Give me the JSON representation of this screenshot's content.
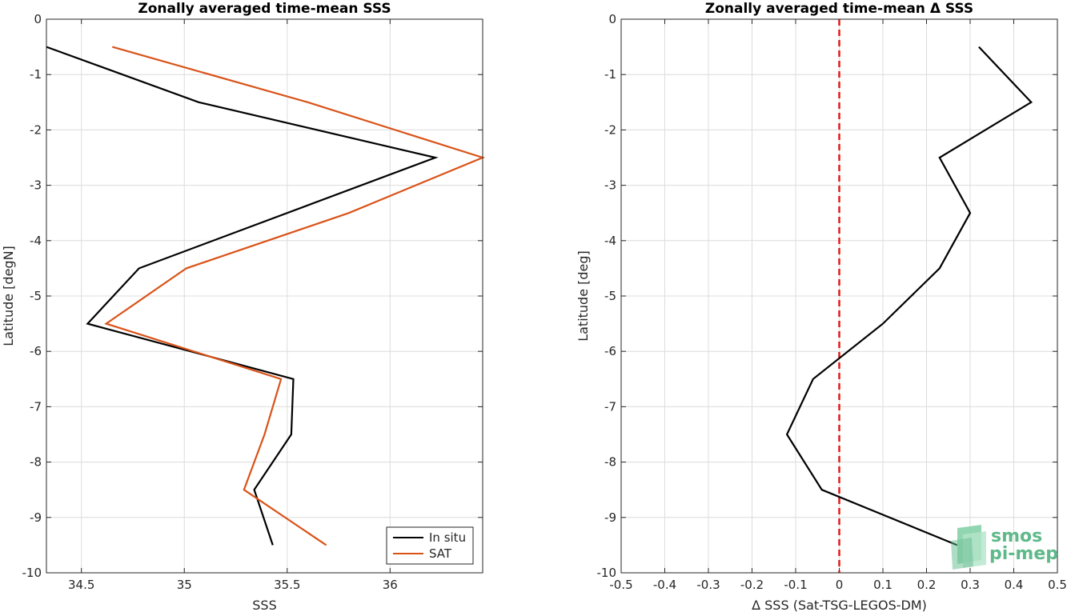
{
  "chart_data": [
    {
      "type": "line",
      "title": "Zonally averaged time-mean SSS",
      "xlabel": "SSS",
      "ylabel": "Latitude [degN]",
      "xlim": [
        34.33,
        36.45
      ],
      "ylim": [
        -10,
        0
      ],
      "xticks": [
        34.5,
        35,
        35.5,
        36
      ],
      "xtick_labels": [
        "34.5",
        "35",
        "35.5",
        "36"
      ],
      "yticks": [
        0,
        -1,
        -2,
        -3,
        -4,
        -5,
        -6,
        -7,
        -8,
        -9,
        -10
      ],
      "ytick_labels": [
        "0",
        "-1",
        "-2",
        "-3",
        "-4",
        "-5",
        "-6",
        "-7",
        "-8",
        "-9",
        "-10"
      ],
      "grid": true,
      "legend_position": "bottom-right",
      "series": [
        {
          "name": "In situ",
          "color": "#000000",
          "x": [
            34.33,
            35.07,
            36.22,
            34.78,
            34.53,
            35.53,
            35.52,
            35.34,
            35.43
          ],
          "y": [
            -0.5,
            -1.5,
            -2.5,
            -4.5,
            -5.5,
            -6.5,
            -7.5,
            -8.5,
            -9.5
          ]
        },
        {
          "name": "SAT",
          "color": "#d95319",
          "x": [
            34.65,
            35.6,
            36.45,
            35.8,
            35.01,
            34.62,
            35.47,
            35.39,
            35.29,
            35.69
          ],
          "y": [
            -0.5,
            -1.5,
            -2.5,
            -3.5,
            -4.5,
            -5.5,
            -6.5,
            -7.5,
            -8.5,
            -9.5
          ]
        }
      ]
    },
    {
      "type": "line",
      "title": "Zonally averaged time-mean Δ SSS",
      "xlabel": "Δ SSS (Sat-TSG-LEGOS-DM)",
      "ylabel": "Latitude [deg]",
      "xlim": [
        -0.5,
        0.5
      ],
      "ylim": [
        -10,
        0
      ],
      "xticks": [
        -0.5,
        -0.4,
        -0.3,
        -0.2,
        -0.1,
        0,
        0.1,
        0.2,
        0.3,
        0.4,
        0.5
      ],
      "xtick_labels": [
        "-0.5",
        "-0.4",
        "-0.3",
        "-0.2",
        "-0.1",
        "0",
        "0.1",
        "0.2",
        "0.3",
        "0.4",
        "0.5"
      ],
      "yticks": [
        0,
        -1,
        -2,
        -3,
        -4,
        -5,
        -6,
        -7,
        -8,
        -9,
        -10
      ],
      "ytick_labels": [
        "0",
        "-1",
        "-2",
        "-3",
        "-4",
        "-5",
        "-6",
        "-7",
        "-8",
        "-9",
        "-10"
      ],
      "grid": true,
      "reference_line": {
        "x": 0,
        "color": "#e01a1a",
        "style": "dashed"
      },
      "series": [
        {
          "name": "",
          "color": "#000000",
          "x": [
            0.32,
            0.44,
            0.23,
            0.3,
            0.23,
            0.1,
            -0.06,
            -0.12,
            -0.04,
            0.27
          ],
          "y": [
            -0.5,
            -1.5,
            -2.5,
            -3.5,
            -4.5,
            -5.5,
            -6.5,
            -7.5,
            -8.5,
            -9.5
          ]
        }
      ]
    }
  ],
  "logo": {
    "line1": "smos",
    "line2": "pi-mep",
    "color": "#5fb98a"
  }
}
